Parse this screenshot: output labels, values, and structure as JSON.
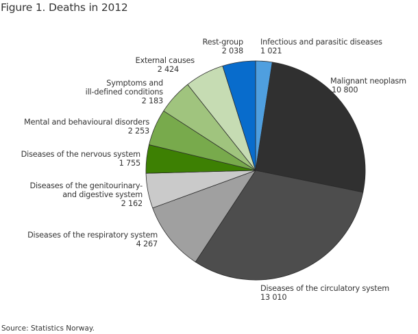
{
  "title": "Figure 1. Deaths in 2012",
  "source": "Source: Statistics Norway.",
  "chart_data": {
    "type": "pie",
    "title": "Figure 1. Deaths in 2012",
    "start_angle_deg": 0,
    "direction": "clockwise",
    "slices": [
      {
        "label": "Infectious and parasitic diseases",
        "value": 1021,
        "value_text": "1 021",
        "color": "#4f9fdf"
      },
      {
        "label": "Malignant neoplasm",
        "value": 10800,
        "value_text": "10 800",
        "color": "#303030"
      },
      {
        "label": "Diseases of the circulatory system",
        "value": 13010,
        "value_text": "13 010",
        "color": "#4d4d4d"
      },
      {
        "label": "Diseases of the respiratory system",
        "value": 4267,
        "value_text": "4 267",
        "color": "#a0a0a0"
      },
      {
        "label": "Diseases of the genitourinary- and digestive system",
        "value": 2162,
        "value_text": "2 162",
        "color": "#cacaca"
      },
      {
        "label": "Diseases of the nervous system",
        "value": 1755,
        "value_text": "1 755",
        "color": "#3d8003"
      },
      {
        "label": "Mental and behavioural disorders",
        "value": 2253,
        "value_text": "2 253",
        "color": "#78aa4c"
      },
      {
        "label": "Symptoms and ill-defined conditions",
        "value": 2183,
        "value_text": "2 183",
        "color": "#a0c47e"
      },
      {
        "label": "External causes",
        "value": 2424,
        "value_text": "2 424",
        "color": "#c6dcb3"
      },
      {
        "label": "Rest-group",
        "value": 2038,
        "value_text": "2 038",
        "color": "#086ccc"
      }
    ],
    "total": 41913
  },
  "labels": {
    "infectious": {
      "line1": "Infectious and parasitic diseases",
      "value": "1 021"
    },
    "malignant": {
      "line1": "Malignant neoplasm",
      "value": "10 800"
    },
    "circulatory": {
      "line1": "Diseases of the circulatory system",
      "value": "13 010"
    },
    "respiratory": {
      "line1": "Diseases of the respiratory system",
      "value": "4 267"
    },
    "genitourinary": {
      "line1": "Diseases of the genitourinary-",
      "line2": "and digestive system",
      "value": "2 162"
    },
    "nervous": {
      "line1": "Diseases of the nervous system",
      "value": "1 755"
    },
    "mental": {
      "line1": "Mental and behavioural disorders",
      "value": "2 253"
    },
    "symptoms": {
      "line1": "Symptoms and",
      "line2": "ill-defined conditions",
      "value": "2 183"
    },
    "external": {
      "line1": "External causes",
      "value": "2 424"
    },
    "rest": {
      "line1": "Rest-group",
      "value": "2 038"
    }
  }
}
